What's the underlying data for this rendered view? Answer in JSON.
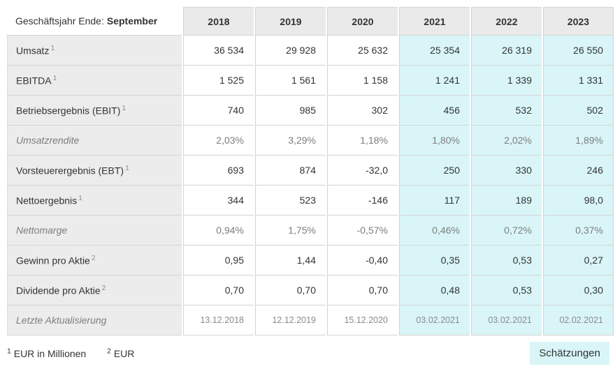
{
  "colors": {
    "estimate_bg": "#d9f5f8",
    "header_bg": "#eaeaea",
    "label_bg": "#ececec",
    "border": "#d4d4d4",
    "text": "#333333",
    "muted_text": "#7d7d7d",
    "date_text": "#8a8a8a"
  },
  "chart_data": {
    "type": "table",
    "header": {
      "label_prefix": "Geschäftsjahr Ende:",
      "label_bold": "September"
    },
    "years": [
      "2018",
      "2019",
      "2020",
      "2021",
      "2022",
      "2023"
    ],
    "estimate_from_index": 3,
    "rows": [
      {
        "label": "Umsatz",
        "sup": "1",
        "muted": false,
        "date": false,
        "values": [
          "36 534",
          "29 928",
          "25 632",
          "25 354",
          "26 319",
          "26 550"
        ]
      },
      {
        "label": "EBITDA",
        "sup": "1",
        "muted": false,
        "date": false,
        "values": [
          "1 525",
          "1 561",
          "1 158",
          "1 241",
          "1 339",
          "1 331"
        ]
      },
      {
        "label": "Betriebsergebnis (EBIT)",
        "sup": "1",
        "muted": false,
        "date": false,
        "values": [
          "740",
          "985",
          "302",
          "456",
          "532",
          "502"
        ]
      },
      {
        "label": "Umsatzrendite",
        "sup": "",
        "muted": true,
        "date": false,
        "values": [
          "2,03%",
          "3,29%",
          "1,18%",
          "1,80%",
          "2,02%",
          "1,89%"
        ]
      },
      {
        "label": "Vorsteuerergebnis (EBT)",
        "sup": "1",
        "muted": false,
        "date": false,
        "values": [
          "693",
          "874",
          "-32,0",
          "250",
          "330",
          "246"
        ]
      },
      {
        "label": "Nettoergebnis",
        "sup": "1",
        "muted": false,
        "date": false,
        "values": [
          "344",
          "523",
          "-146",
          "117",
          "189",
          "98,0"
        ]
      },
      {
        "label": "Nettomarge",
        "sup": "",
        "muted": true,
        "date": false,
        "values": [
          "0,94%",
          "1,75%",
          "-0,57%",
          "0,46%",
          "0,72%",
          "0,37%"
        ]
      },
      {
        "label": "Gewinn pro Aktie",
        "sup": "2",
        "muted": false,
        "date": false,
        "values": [
          "0,95",
          "1,44",
          "-0,40",
          "0,35",
          "0,53",
          "0,27"
        ]
      },
      {
        "label": "Dividende pro Aktie",
        "sup": "2",
        "muted": false,
        "date": false,
        "values": [
          "0,70",
          "0,70",
          "0,70",
          "0,48",
          "0,53",
          "0,30"
        ]
      },
      {
        "label": "Letzte Aktualisierung",
        "sup": "",
        "muted": true,
        "date": true,
        "values": [
          "13.12.2018",
          "12.12.2019",
          "15.12.2020",
          "03.02.2021",
          "03.02.2021",
          "02.02.2021"
        ]
      }
    ],
    "footnote_1": {
      "sup": "1",
      "text": "EUR in Millionen"
    },
    "footnote_2": {
      "sup": "2",
      "text": "EUR"
    },
    "estimates_label": "Schätzungen"
  }
}
